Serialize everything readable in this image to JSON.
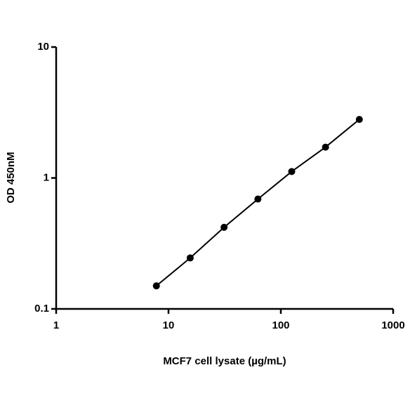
{
  "chart_data": {
    "type": "line",
    "xlabel": "MCF7 cell lysate (µg/mL)",
    "ylabel": "OD 450nM",
    "x": [
      7.8,
      15.6,
      31.25,
      62.5,
      125,
      250,
      500
    ],
    "series": [
      {
        "color": "#000000",
        "values": [
          0.15,
          0.245,
          0.42,
          0.69,
          1.12,
          1.72,
          2.8
        ]
      }
    ],
    "xscale": "log",
    "yscale": "log",
    "markers": true,
    "xlim": [
      1,
      1000
    ],
    "xticks": [
      1,
      10,
      100,
      1000
    ],
    "ylim": [
      0.1,
      10
    ],
    "yticks": [
      0.1,
      1,
      10
    ]
  }
}
